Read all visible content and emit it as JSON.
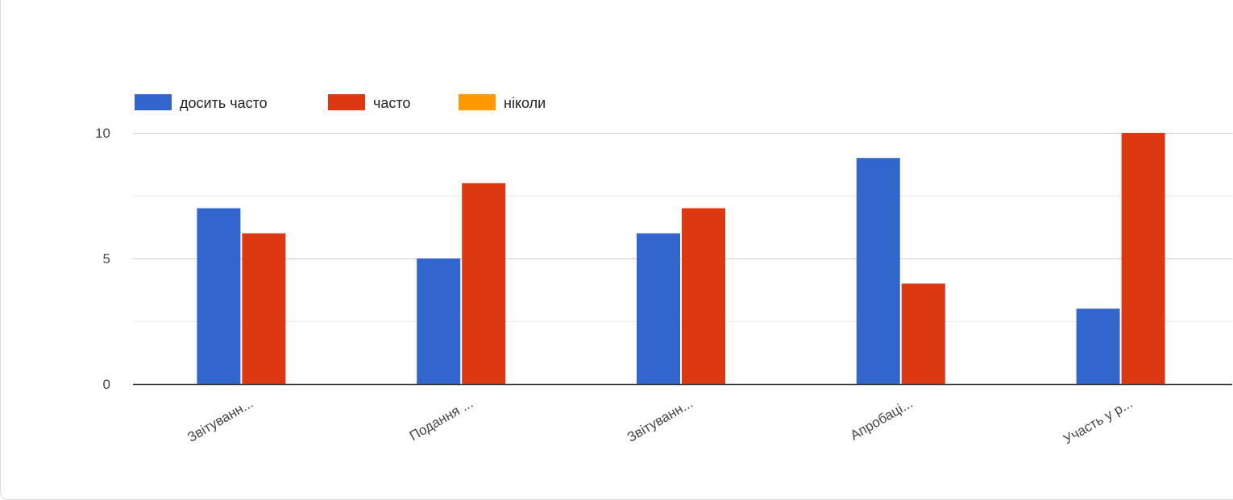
{
  "chart_data": {
    "type": "bar",
    "categories": [
      "Звітуванн...",
      "Подання ...",
      "Звітуванн...",
      "Апробаці...",
      "Участь у р..."
    ],
    "series": [
      {
        "name": "досить часто",
        "color": "#3366cc",
        "values": [
          7,
          5,
          6,
          9,
          3
        ]
      },
      {
        "name": "часто",
        "color": "#dc3912",
        "values": [
          6,
          8,
          7,
          4,
          10
        ]
      },
      {
        "name": "ніколи",
        "color": "#ff9900",
        "values": [
          0,
          0,
          0,
          0,
          0
        ]
      }
    ],
    "ylim": [
      0,
      10
    ],
    "y_ticks": [
      "0",
      "5",
      "10"
    ],
    "grid": true,
    "legend_position": "top-left",
    "title": "",
    "xlabel": "",
    "ylabel": ""
  }
}
